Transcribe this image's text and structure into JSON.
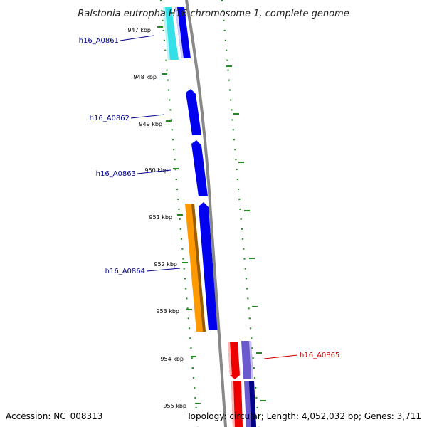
{
  "title": "Ralstonia eutropha H16 chromosome 1, complete genome",
  "ticks": [
    "947 kbp",
    "948 kbp",
    "949 kbp",
    "950 kbp",
    "951 kbp",
    "952 kbp",
    "953 kbp",
    "954 kbp",
    "955 kbp"
  ],
  "genes": [
    {
      "label": "h16_A0861",
      "color": "#00008b"
    },
    {
      "label": "h16_A0862",
      "color": "#00008b"
    },
    {
      "label": "h16_A0863",
      "color": "#00008b"
    },
    {
      "label": "h16_A0864",
      "color": "#00008b"
    },
    {
      "label": "h16_A0865",
      "color": "#cc0000"
    }
  ],
  "colors": {
    "backbone": "#888888",
    "cyan": "#33e0e8",
    "blue": "#0000ee",
    "orange": "#ff9900",
    "red": "#ee0000",
    "slate": "#6a5acd",
    "navy": "#000088",
    "dots": "#228b22"
  },
  "footer": {
    "accession": "Accession: NC_008313",
    "topology": "Topology: circular; Length: 4,052,032 bp; Genes: 3,711"
  }
}
